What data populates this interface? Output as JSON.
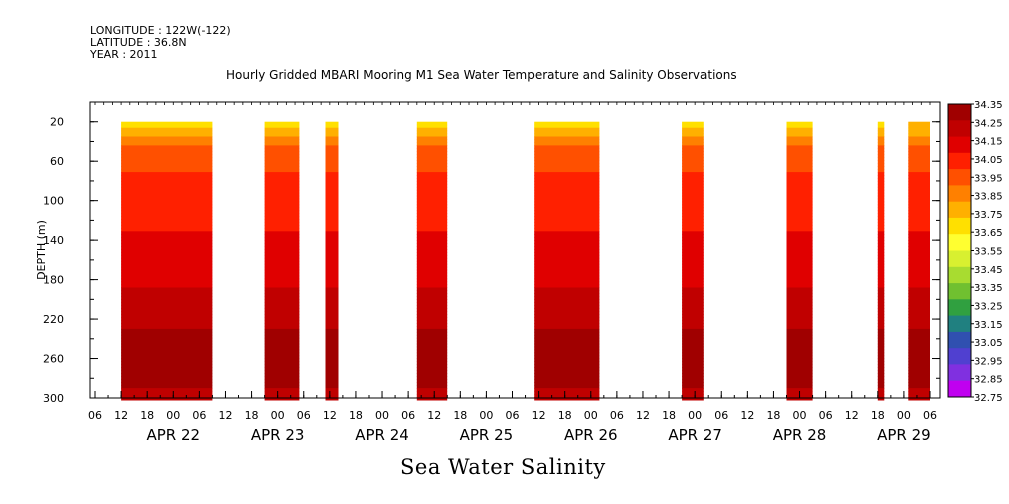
{
  "header": {
    "longitude": "LONGITUDE : 122W(-122)",
    "latitude": "LATITUDE : 36.8N",
    "year": "YEAR : 2011"
  },
  "chart_data": {
    "type": "heatmap",
    "title": "Hourly Gridded MBARI Mooring M1 Sea Water Temperature and Salinity Observations",
    "xlabel": "Sea Water Salinity",
    "ylabel": "DEPTH (m)",
    "x_hour_ticks": [
      "06",
      "12",
      "18",
      "00",
      "06",
      "12",
      "18",
      "00",
      "06",
      "12",
      "18",
      "00",
      "06",
      "12",
      "18",
      "00",
      "06",
      "12",
      "18",
      "00",
      "06",
      "12",
      "18",
      "00",
      "06",
      "12",
      "18",
      "00",
      "06",
      "12",
      "18",
      "00",
      "06"
    ],
    "x_date_labels": [
      "APR 22",
      "APR 23",
      "APR 24",
      "APR 25",
      "APR 26",
      "APR 27",
      "APR 28",
      "APR 29"
    ],
    "xlim_hours": [
      0,
      192
    ],
    "y_ticks": [
      20,
      60,
      100,
      140,
      180,
      220,
      260,
      300
    ],
    "ylim": [
      300,
      0
    ],
    "colorbar": {
      "ticks": [
        "34.35",
        "34.25",
        "34.15",
        "34.05",
        "33.95",
        "33.85",
        "33.75",
        "33.65",
        "33.55",
        "33.45",
        "33.35",
        "33.25",
        "33.15",
        "33.05",
        "32.95",
        "32.85",
        "32.75"
      ],
      "colors": [
        "#a00000",
        "#c00000",
        "#e00000",
        "#ff2000",
        "#ff5000",
        "#ff8000",
        "#ffb000",
        "#ffe000",
        "#ffff30",
        "#d8f030",
        "#a8dc30",
        "#70c030",
        "#30a040",
        "#208080",
        "#3050b0",
        "#5040d0",
        "#8030e0",
        "#c000f0"
      ]
    },
    "depth_profile": [
      {
        "depth": 20,
        "salinity": 33.55
      },
      {
        "depth": 30,
        "salinity": 33.7
      },
      {
        "depth": 40,
        "salinity": 33.82
      },
      {
        "depth": 50,
        "salinity": 33.9
      },
      {
        "depth": 70,
        "salinity": 33.95
      },
      {
        "depth": 90,
        "salinity": 34.0
      },
      {
        "depth": 130,
        "salinity": 34.05
      },
      {
        "depth": 170,
        "salinity": 34.12
      },
      {
        "depth": 200,
        "salinity": 34.17
      },
      {
        "depth": 230,
        "salinity": 34.25
      },
      {
        "depth": 260,
        "salinity": 34.32
      },
      {
        "depth": 280,
        "salinity": 34.28
      },
      {
        "depth": 300,
        "salinity": 34.22
      }
    ],
    "data_segments": [
      {
        "start_hour": 6,
        "end_hour": 27
      },
      {
        "start_hour": 39,
        "end_hour": 47
      },
      {
        "start_hour": 53,
        "end_hour": 56
      },
      {
        "start_hour": 74,
        "end_hour": 81
      },
      {
        "start_hour": 101,
        "end_hour": 116
      },
      {
        "start_hour": 135,
        "end_hour": 140
      },
      {
        "start_hour": 159,
        "end_hour": 165
      },
      {
        "start_hour": 180,
        "end_hour": 181.5
      },
      {
        "start_hour": 187,
        "end_hour": 192,
        "top_depth": 20
      }
    ]
  }
}
